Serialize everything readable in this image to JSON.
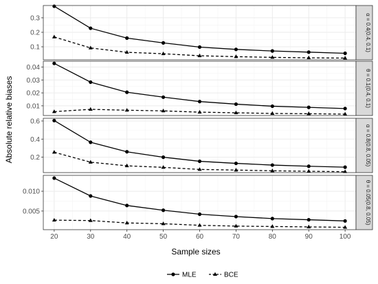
{
  "chart_data": {
    "type": "line",
    "xlabel": "Sample sizes",
    "ylabel": "Absolute relative biases",
    "x": [
      20,
      30,
      40,
      50,
      60,
      70,
      80,
      90,
      100
    ],
    "x_ticks": [
      "20",
      "30",
      "40",
      "50",
      "60",
      "70",
      "80",
      "90",
      "100"
    ],
    "legend": {
      "placement": "bottom",
      "entries": [
        "MLE",
        "BCE"
      ]
    },
    "grid": true,
    "panels": [
      {
        "strip": "α = 0.4(0.4, 0.1)",
        "ylim": [
          0.01,
          0.385
        ],
        "y_ticks": [
          0.1,
          0.2,
          0.3
        ],
        "y_tick_labels": [
          "0.1",
          "0.2",
          "0.3"
        ],
        "series": [
          {
            "name": "MLE",
            "values": [
              0.38,
              0.228,
              0.16,
              0.127,
              0.098,
              0.082,
              0.071,
              0.063,
              0.055
            ]
          },
          {
            "name": "BCE",
            "values": [
              0.168,
              0.092,
              0.062,
              0.052,
              0.038,
              0.032,
              0.027,
              0.024,
              0.022
            ]
          }
        ]
      },
      {
        "strip": "θ = 0.1(0.4, 0.1)",
        "ylim": [
          0.0025,
          0.0445
        ],
        "y_ticks": [
          0.01,
          0.02,
          0.03,
          0.04
        ],
        "y_tick_labels": [
          "0.01",
          "0.02",
          "0.03",
          "0.04"
        ],
        "series": [
          {
            "name": "MLE",
            "values": [
              0.0428,
              0.0283,
              0.0205,
              0.0167,
              0.0133,
              0.0113,
              0.0097,
              0.0088,
              0.0079
            ]
          },
          {
            "name": "BCE",
            "values": [
              0.0055,
              0.0073,
              0.0066,
              0.0061,
              0.0051,
              0.0046,
              0.0041,
              0.0039,
              0.0036
            ]
          }
        ]
      },
      {
        "strip": "α = 0.8(0.8, 0.05)",
        "ylim": [
          0.03,
          0.63
        ],
        "y_ticks": [
          0.2,
          0.4,
          0.6
        ],
        "y_tick_labels": [
          "0.2",
          "0.4",
          "0.6"
        ],
        "series": [
          {
            "name": "MLE",
            "values": [
              0.605,
              0.365,
              0.26,
              0.2,
              0.155,
              0.132,
              0.113,
              0.1,
              0.09
            ]
          },
          {
            "name": "BCE",
            "values": [
              0.255,
              0.145,
              0.105,
              0.088,
              0.065,
              0.058,
              0.05,
              0.045,
              0.04
            ]
          }
        ]
      },
      {
        "strip": "θ = 0.05(0.8, 0.05)",
        "ylim": [
          0.0003,
          0.014
        ],
        "y_ticks": [
          0.005,
          0.01
        ],
        "y_tick_labels": [
          "0.005",
          "0.010"
        ],
        "series": [
          {
            "name": "MLE",
            "values": [
              0.0133,
              0.0088,
              0.0064,
              0.0052,
              0.0042,
              0.0036,
              0.0031,
              0.0028,
              0.0025
            ]
          },
          {
            "name": "BCE",
            "values": [
              0.0027,
              0.0026,
              0.002,
              0.0018,
              0.0014,
              0.0012,
              0.0011,
              0.001,
              0.0009
            ]
          }
        ]
      }
    ]
  }
}
